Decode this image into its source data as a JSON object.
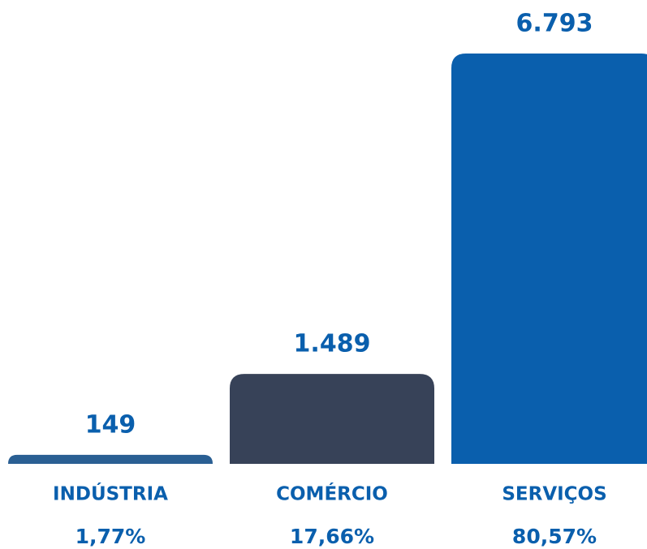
{
  "chart_data": {
    "type": "bar",
    "categories": [
      "INDÚSTRIA",
      "COMÉRCIO",
      "SERVIÇOS"
    ],
    "values": [
      149,
      1489,
      6793
    ],
    "value_labels": [
      "149",
      "1.489",
      "6.793"
    ],
    "colors": [
      "#2a5f93",
      "#374258",
      "#0a5fad"
    ],
    "shares": [
      1.77,
      17.66,
      80.57
    ],
    "share_labels": [
      "1,77%",
      "17,66%",
      "80,57%"
    ],
    "ylim": [
      0,
      6793
    ]
  }
}
